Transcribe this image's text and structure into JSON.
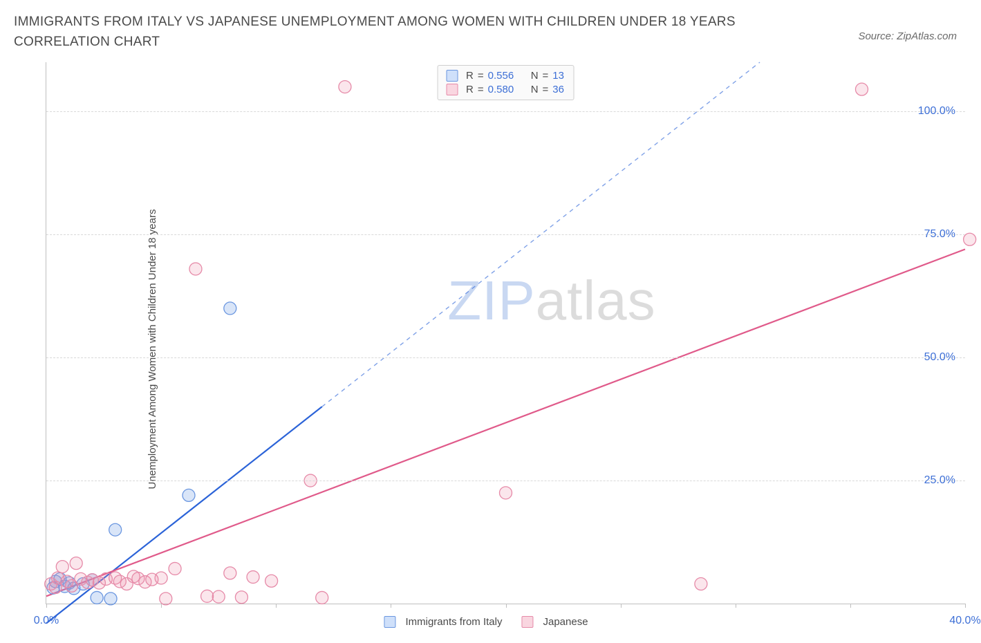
{
  "title": "IMMIGRANTS FROM ITALY VS JAPANESE UNEMPLOYMENT AMONG WOMEN WITH CHILDREN UNDER 18 YEARS CORRELATION CHART",
  "source_label": "Source: ZipAtlas.com",
  "ylabel": "Unemployment Among Women with Children Under 18 years",
  "watermark_a": "ZIP",
  "watermark_b": "atlas",
  "watermark_color_a": "#c9d8f2",
  "watermark_color_b": "#dcdcdc",
  "chart": {
    "type": "scatter",
    "xlim": [
      0,
      40
    ],
    "ylim": [
      0,
      110
    ],
    "x_ticks_major": [
      0,
      10,
      20,
      30,
      40
    ],
    "x_ticks_minor": [
      5,
      15,
      25,
      35
    ],
    "x_tick_label": "0.0%",
    "x_tick_label_right": "40.0%",
    "y_ticks": [
      25,
      50,
      75,
      100
    ],
    "y_tick_labels": [
      "25.0%",
      "50.0%",
      "75.0%",
      "100.0%"
    ],
    "grid_color": "#d8d8d8",
    "axis_color": "#bfbfbf",
    "series": [
      {
        "id": "italy",
        "legend_label": "Immigrants from Italy",
        "swatch_fill": "#cfe0fa",
        "swatch_border": "#6a96e0",
        "marker_fill": "rgba(120,160,230,0.28)",
        "marker_stroke": "#6a96e0",
        "marker_radius": 9,
        "R": "0.556",
        "N": "13",
        "points": [
          [
            0.3,
            3.2
          ],
          [
            0.4,
            4.5
          ],
          [
            0.6,
            5.0
          ],
          [
            0.8,
            3.5
          ],
          [
            1.0,
            4.2
          ],
          [
            1.2,
            3.1
          ],
          [
            1.6,
            4.0
          ],
          [
            2.0,
            4.8
          ],
          [
            2.2,
            1.2
          ],
          [
            2.8,
            1.0
          ],
          [
            3.0,
            15.0
          ],
          [
            6.2,
            22.0
          ],
          [
            8.0,
            60.0
          ]
        ],
        "regression": {
          "x1": 0,
          "y1": -4,
          "x2": 12,
          "y2": 40,
          "dashed_extension": true,
          "slope": 3.67,
          "intercept": -4,
          "color": "#2b63d8",
          "width": 2.2
        }
      },
      {
        "id": "japanese",
        "legend_label": "Japanese",
        "swatch_fill": "#f9d6e0",
        "swatch_border": "#e68aa8",
        "marker_fill": "rgba(235,140,170,0.22)",
        "marker_stroke": "#e68aa8",
        "marker_radius": 9,
        "R": "0.580",
        "N": "36",
        "points": [
          [
            0.2,
            4.0
          ],
          [
            0.4,
            3.3
          ],
          [
            0.5,
            5.2
          ],
          [
            0.7,
            7.5
          ],
          [
            0.9,
            4.5
          ],
          [
            1.1,
            3.6
          ],
          [
            1.3,
            8.2
          ],
          [
            1.5,
            5.0
          ],
          [
            1.8,
            4.3
          ],
          [
            2.0,
            4.8
          ],
          [
            2.3,
            4.2
          ],
          [
            2.6,
            5.0
          ],
          [
            3.0,
            5.2
          ],
          [
            3.2,
            4.5
          ],
          [
            3.5,
            4.0
          ],
          [
            3.8,
            5.5
          ],
          [
            4.0,
            5.1
          ],
          [
            4.3,
            4.4
          ],
          [
            4.6,
            4.9
          ],
          [
            5.0,
            5.2
          ],
          [
            5.2,
            1.0
          ],
          [
            5.6,
            7.1
          ],
          [
            6.5,
            68.0
          ],
          [
            7.0,
            1.5
          ],
          [
            7.5,
            1.4
          ],
          [
            8.0,
            6.2
          ],
          [
            8.5,
            1.3
          ],
          [
            9.0,
            5.4
          ],
          [
            9.8,
            4.6
          ],
          [
            11.5,
            25.0
          ],
          [
            12.0,
            1.2
          ],
          [
            13.0,
            105.0
          ],
          [
            20.0,
            22.5
          ],
          [
            28.5,
            4.0
          ],
          [
            35.5,
            104.5
          ],
          [
            40.2,
            74.0
          ]
        ],
        "regression": {
          "x1": 0,
          "y1": 1.5,
          "x2": 40,
          "y2": 72,
          "dashed_extension": false,
          "color": "#e05a8a",
          "width": 2.2
        }
      }
    ]
  },
  "legend_top": {
    "R_label": "R",
    "N_label": "N",
    "eq": "="
  }
}
